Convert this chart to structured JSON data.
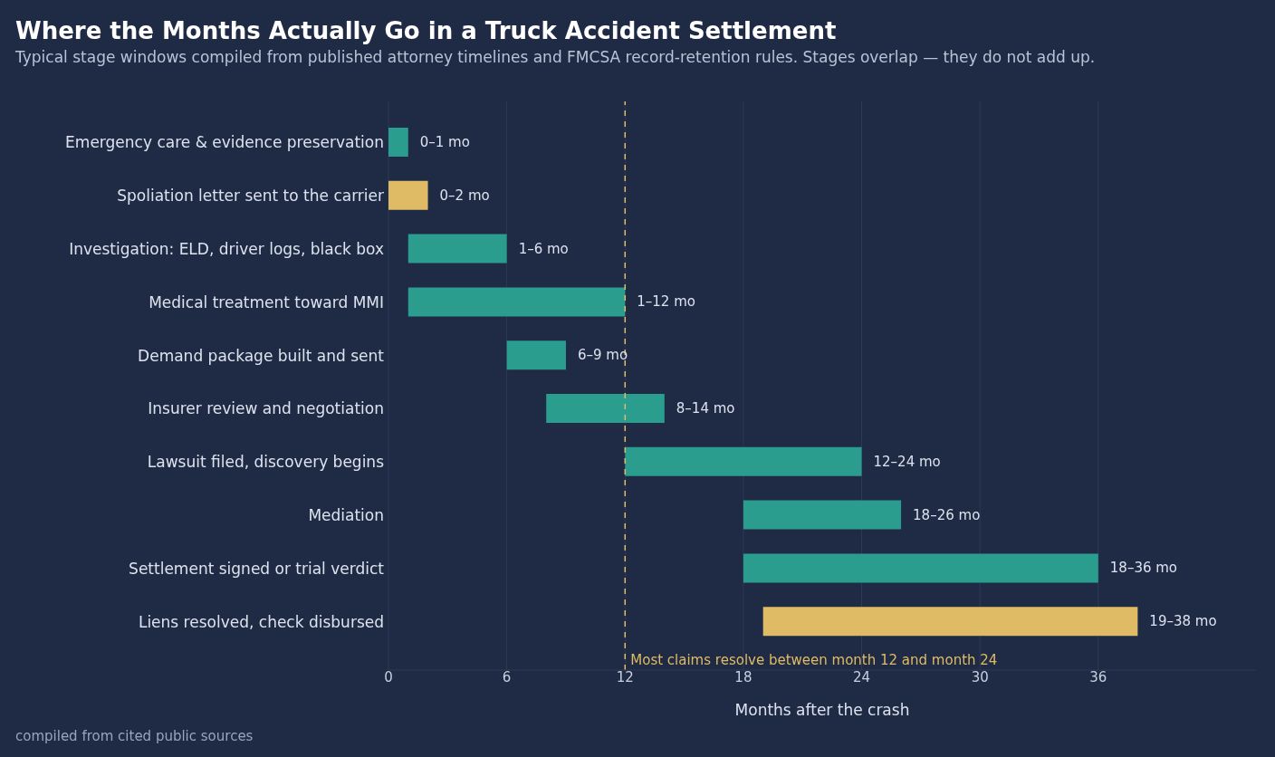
{
  "chart_data": {
    "type": "bar",
    "orientation": "horizontal",
    "title": "Where the Months Actually Go in a Truck Accident Settlement",
    "subtitle": "Typical stage windows compiled from published attorney timelines and FMCSA record-retention rules. Stages overlap — they do not add up.",
    "xlabel": "Months after the crash",
    "categories": [
      "Emergency care & evidence preservation",
      "Spoliation letter sent to the carrier",
      "Investigation: ELD, driver logs, black box",
      "Medical treatment toward MMI",
      "Demand package built and sent",
      "Insurer review and negotiation",
      "Lawsuit filed, discovery begins",
      "Mediation",
      "Settlement signed or trial verdict",
      "Liens resolved, check disbursed"
    ],
    "base": [
      0,
      0,
      1,
      1,
      6,
      8,
      12,
      18,
      18,
      19
    ],
    "values": [
      1,
      2,
      5,
      11,
      3,
      6,
      12,
      8,
      18,
      19
    ],
    "colors": [
      "#2a9d8f",
      "#dfbb66",
      "#2a9d8f",
      "#2a9d8f",
      "#2a9d8f",
      "#2a9d8f",
      "#2a9d8f",
      "#2a9d8f",
      "#2a9d8f",
      "#dfbb66"
    ],
    "value_labels": [
      "0–1 mo",
      "0–2 mo",
      "1–6 mo",
      "1–12 mo",
      "6–9 mo",
      "8–14 mo",
      "12–24 mo",
      "18–26 mo",
      "18–36 mo",
      "19–38 mo"
    ],
    "xlim": [
      0,
      44
    ],
    "xticks": [
      0,
      6,
      12,
      18,
      24,
      30,
      36
    ],
    "grid": "x",
    "ref_lines": [
      {
        "axis": "x",
        "value": 12,
        "label": "Most claims resolve between month 12 and month 24",
        "color": "#dfbb66",
        "line_style": "dashed"
      }
    ],
    "annotations": [
      "compiled from cited public sources"
    ]
  }
}
